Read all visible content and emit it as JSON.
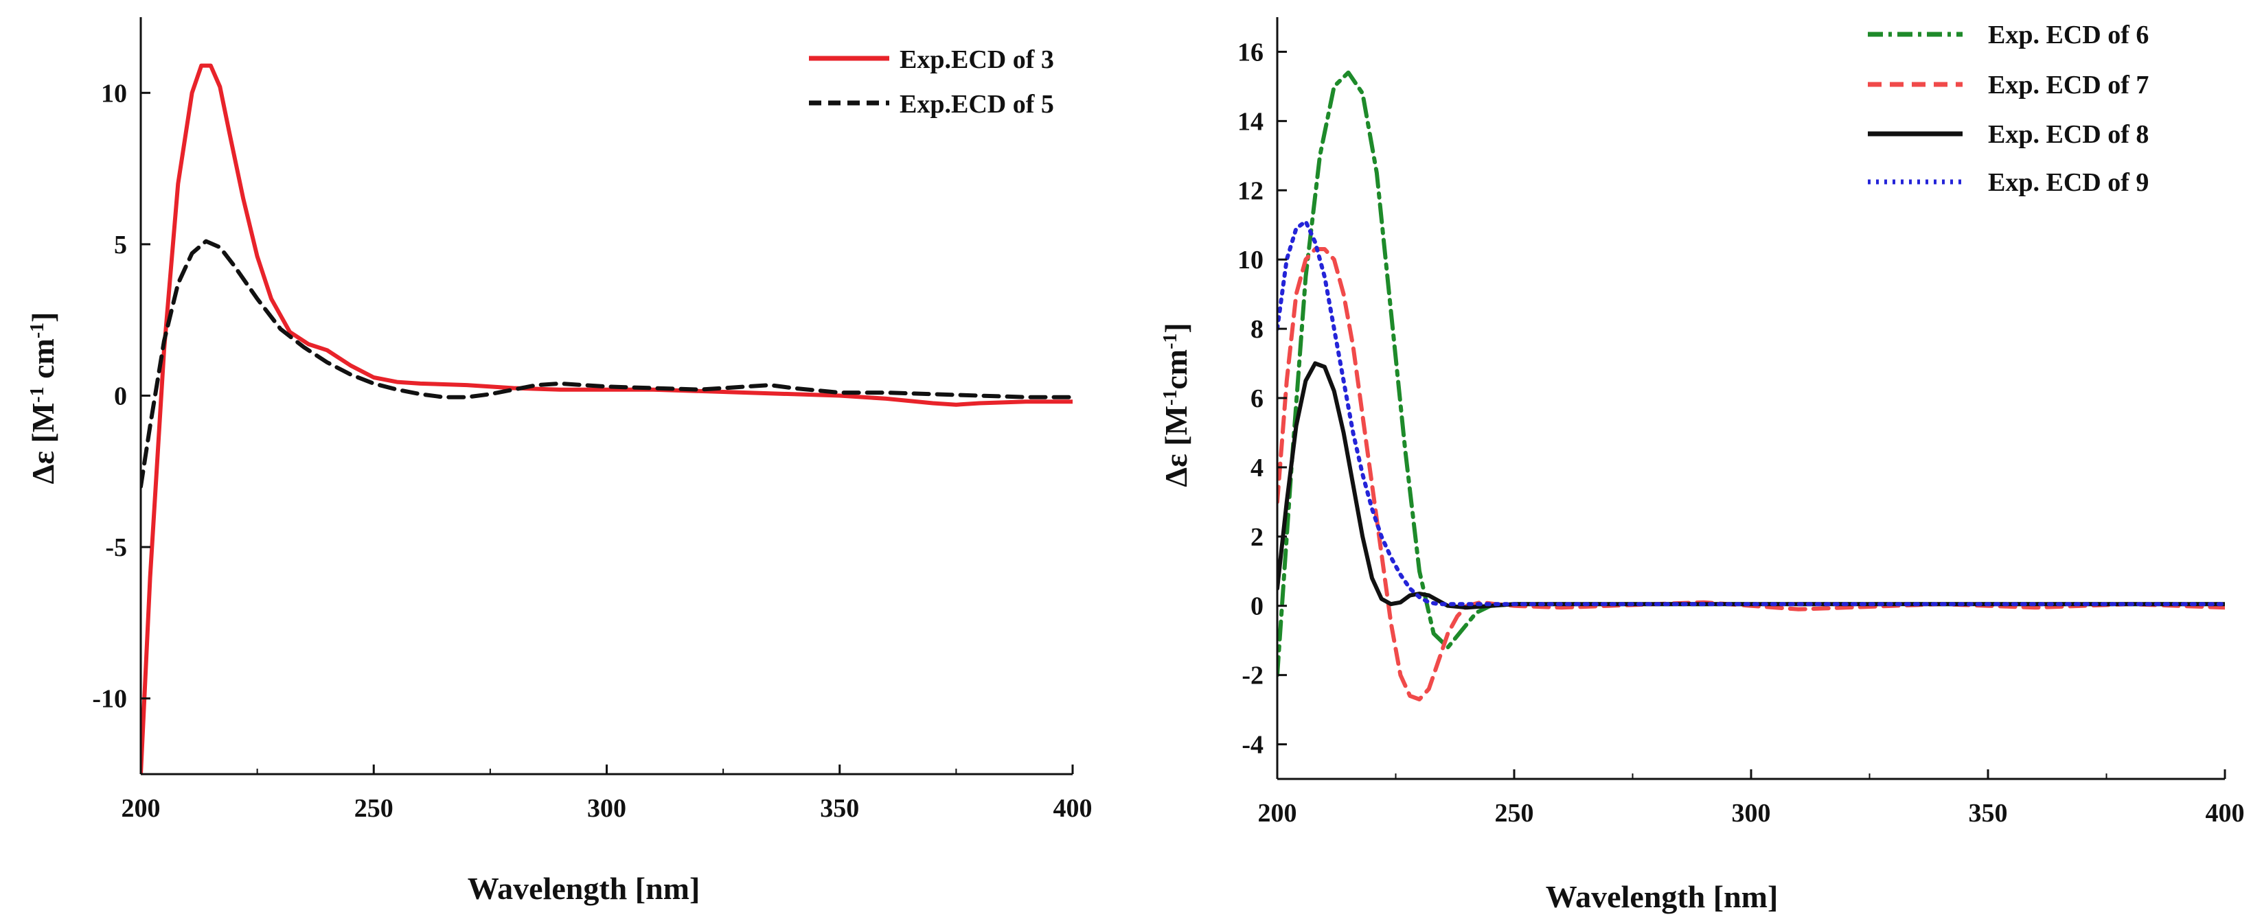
{
  "chart_data": [
    {
      "type": "line",
      "xlabel": "Wavelength [nm]",
      "ylabel": "Δε [M",
      "ylabel_sup1": "-1",
      "ylabel_mid": " cm",
      "ylabel_sup2": "-1",
      "ylabel_end": "]",
      "xlim": [
        200,
        400
      ],
      "ylim": [
        -12.5,
        12.5
      ],
      "xticks": [
        200,
        250,
        300,
        350,
        400
      ],
      "yticks": [
        -10,
        -5,
        0,
        5,
        10
      ],
      "legend_position": "top-right",
      "series": [
        {
          "name": "Exp.ECD of 3",
          "color": "#e8232a",
          "dash": "solid",
          "x": [
            200,
            202,
            205,
            208,
            211,
            213,
            215,
            217,
            219,
            222,
            225,
            228,
            232,
            236,
            240,
            245,
            250,
            255,
            260,
            270,
            280,
            290,
            300,
            310,
            320,
            330,
            340,
            350,
            360,
            370,
            375,
            380,
            390,
            400
          ],
          "y": [
            -12.5,
            -6.0,
            1.5,
            7.0,
            10.0,
            10.9,
            10.9,
            10.2,
            8.7,
            6.5,
            4.6,
            3.2,
            2.1,
            1.7,
            1.5,
            1.0,
            0.6,
            0.45,
            0.4,
            0.35,
            0.25,
            0.2,
            0.2,
            0.2,
            0.15,
            0.1,
            0.05,
            0.0,
            -0.1,
            -0.25,
            -0.3,
            -0.25,
            -0.2,
            -0.2
          ]
        },
        {
          "name": "Exp.ECD of 5",
          "color": "#111111",
          "dash": "dashed",
          "x": [
            200,
            202,
            205,
            208,
            211,
            214,
            217,
            220,
            225,
            230,
            235,
            240,
            245,
            250,
            255,
            260,
            265,
            270,
            275,
            280,
            285,
            290,
            300,
            310,
            320,
            330,
            335,
            340,
            350,
            360,
            370,
            380,
            390,
            400
          ],
          "y": [
            -3.0,
            -1.0,
            1.8,
            3.7,
            4.7,
            5.1,
            4.9,
            4.3,
            3.2,
            2.2,
            1.6,
            1.1,
            0.7,
            0.4,
            0.2,
            0.05,
            -0.05,
            -0.05,
            0.05,
            0.2,
            0.35,
            0.4,
            0.3,
            0.25,
            0.2,
            0.3,
            0.35,
            0.25,
            0.1,
            0.1,
            0.05,
            0.0,
            -0.05,
            -0.05
          ]
        }
      ]
    },
    {
      "type": "line",
      "xlabel": "Wavelength [nm]",
      "ylabel": "Δε [M",
      "ylabel_sup1": "-1",
      "ylabel_mid": "cm",
      "ylabel_sup2": "-1",
      "ylabel_end": "]",
      "xlim": [
        200,
        400
      ],
      "ylim": [
        -5,
        17
      ],
      "xticks": [
        200,
        250,
        300,
        350,
        400
      ],
      "yticks": [
        -4,
        -2,
        0,
        2,
        4,
        6,
        8,
        10,
        12,
        14,
        16
      ],
      "legend_position": "top-right",
      "series": [
        {
          "name": "Exp. ECD of 6",
          "color": "#1e8a2a",
          "dash": "dashdot",
          "x": [
            200,
            203,
            206,
            209,
            212,
            215,
            218,
            221,
            224,
            227,
            230,
            233,
            236,
            239,
            242,
            245,
            250,
            260,
            300,
            350,
            400
          ],
          "y": [
            -2.0,
            4.0,
            9.5,
            13.0,
            15.0,
            15.4,
            14.8,
            12.5,
            8.5,
            4.5,
            1.0,
            -0.8,
            -1.2,
            -0.7,
            -0.2,
            0.0,
            0.05,
            0.05,
            0.05,
            0.05,
            0.05
          ]
        },
        {
          "name": "Exp. ECD of 7",
          "color": "#f04a4a",
          "dash": "dashed",
          "x": [
            200,
            202,
            204,
            206,
            208,
            210,
            212,
            214,
            216,
            218,
            220,
            222,
            224,
            226,
            228,
            230,
            232,
            234,
            236,
            238,
            240,
            243,
            246,
            250,
            260,
            270,
            280,
            290,
            300,
            310,
            320,
            330,
            340,
            350,
            360,
            370,
            380,
            390,
            400
          ],
          "y": [
            3.0,
            6.5,
            9.0,
            10.0,
            10.3,
            10.3,
            10.0,
            9.0,
            7.5,
            5.5,
            3.5,
            1.5,
            -0.5,
            -2.0,
            -2.6,
            -2.7,
            -2.4,
            -1.6,
            -0.8,
            -0.3,
            0.0,
            0.1,
            0.05,
            0.0,
            -0.05,
            0.0,
            0.05,
            0.1,
            0.0,
            -0.1,
            -0.05,
            0.0,
            0.05,
            0.0,
            -0.05,
            0.0,
            0.05,
            0.0,
            -0.05
          ]
        },
        {
          "name": "Exp. ECD of 8",
          "color": "#111111",
          "dash": "solid",
          "x": [
            200,
            202,
            204,
            206,
            208,
            210,
            212,
            214,
            216,
            218,
            220,
            222,
            224,
            226,
            228,
            230,
            232,
            234,
            236,
            240,
            250,
            300,
            350,
            400
          ],
          "y": [
            0.5,
            3.0,
            5.2,
            6.5,
            7.0,
            6.9,
            6.2,
            5.0,
            3.5,
            2.0,
            0.8,
            0.2,
            0.05,
            0.1,
            0.3,
            0.35,
            0.3,
            0.15,
            0.0,
            -0.05,
            0.05,
            0.05,
            0.05,
            0.05
          ]
        },
        {
          "name": "Exp. ECD of 9",
          "color": "#2424d8",
          "dash": "dotted",
          "x": [
            200,
            202,
            204,
            206,
            208,
            210,
            212,
            214,
            216,
            218,
            220,
            222,
            224,
            226,
            228,
            230,
            232,
            234,
            240,
            250,
            300,
            350,
            400
          ],
          "y": [
            8.0,
            10.0,
            10.9,
            11.1,
            10.5,
            9.5,
            8.0,
            6.5,
            5.0,
            3.8,
            2.8,
            2.0,
            1.4,
            0.9,
            0.5,
            0.25,
            0.1,
            0.05,
            0.05,
            0.05,
            0.05,
            0.05,
            0.05
          ]
        }
      ]
    }
  ]
}
